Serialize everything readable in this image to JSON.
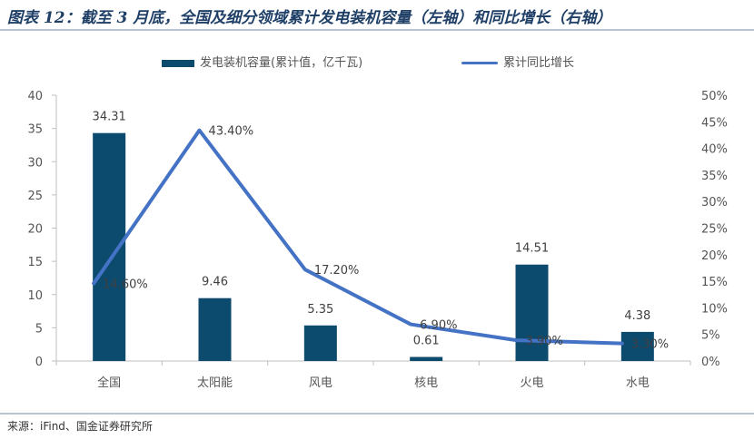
{
  "title": "图表 12：截至 3 月底，全国及细分领域累计发电装机容量（左轴）和同比增长（右轴）",
  "source": "来源：iFind、国金证券研究所",
  "colors": {
    "bar": "#0c4a6e",
    "line": "#4472c4",
    "title": "#1f3f66"
  },
  "chart_data": {
    "type": "bar",
    "categories": [
      "全国",
      "太阳能",
      "风电",
      "核电",
      "火电",
      "水电"
    ],
    "series": [
      {
        "name": "发电装机容量(累计值，亿千瓦)",
        "type": "bar",
        "axis": "left",
        "values": [
          34.31,
          9.46,
          5.35,
          0.61,
          14.51,
          4.38
        ],
        "labels": [
          "34.31",
          "9.46",
          "5.35",
          "0.61",
          "14.51",
          "4.38"
        ]
      },
      {
        "name": "累计同比增长",
        "type": "line",
        "axis": "right",
        "values": [
          14.6,
          43.4,
          17.2,
          6.9,
          3.9,
          3.3
        ],
        "labels": [
          "14.60%",
          "43.40%",
          "17.20%",
          "6.90%",
          "3.90%",
          "3.30%"
        ]
      }
    ],
    "ylim_left": [
      0,
      40
    ],
    "yticks_left": [
      "0",
      "5",
      "10",
      "15",
      "20",
      "25",
      "30",
      "35",
      "40"
    ],
    "ylim_right": [
      0,
      50
    ],
    "yticks_right": [
      "0%",
      "5%",
      "10%",
      "15%",
      "20%",
      "25%",
      "30%",
      "35%",
      "40%",
      "45%",
      "50%"
    ],
    "grid": false,
    "legend_position": "top"
  }
}
